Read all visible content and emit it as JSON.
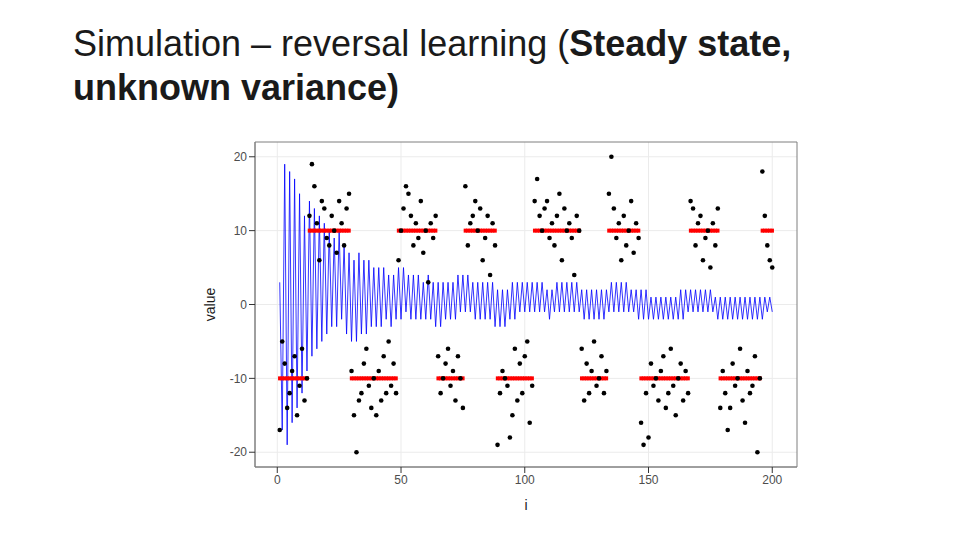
{
  "chart_data": {
    "type": "scatter",
    "title": "Simulation – reversal learning (Steady state, unknown variance)",
    "x_label": "i",
    "y_label": "value",
    "xlim": [
      -9,
      210
    ],
    "ylim": [
      -22,
      22
    ],
    "xticks": [
      0,
      50,
      100,
      150,
      200
    ],
    "yticks": [
      -20,
      -10,
      0,
      10,
      20
    ],
    "grid": true,
    "x": [
      1,
      2,
      3,
      4,
      5,
      6,
      7,
      8,
      9,
      10,
      11,
      12,
      13,
      14,
      15,
      16,
      17,
      18,
      19,
      20,
      21,
      22,
      23,
      24,
      25,
      26,
      27,
      28,
      29,
      30,
      31,
      32,
      33,
      34,
      35,
      36,
      37,
      38,
      39,
      40,
      41,
      42,
      43,
      44,
      45,
      46,
      47,
      48,
      49,
      50,
      51,
      52,
      53,
      54,
      55,
      56,
      57,
      58,
      59,
      60,
      61,
      62,
      63,
      64,
      65,
      66,
      67,
      68,
      69,
      70,
      71,
      72,
      73,
      74,
      75,
      76,
      77,
      78,
      79,
      80,
      81,
      82,
      83,
      84,
      85,
      86,
      87,
      88,
      89,
      90,
      91,
      92,
      93,
      94,
      95,
      96,
      97,
      98,
      99,
      100,
      101,
      102,
      103,
      104,
      105,
      106,
      107,
      108,
      109,
      110,
      111,
      112,
      113,
      114,
      115,
      116,
      117,
      118,
      119,
      120,
      121,
      122,
      123,
      124,
      125,
      126,
      127,
      128,
      129,
      130,
      131,
      132,
      133,
      134,
      135,
      136,
      137,
      138,
      139,
      140,
      141,
      142,
      143,
      144,
      145,
      146,
      147,
      148,
      149,
      150,
      151,
      152,
      153,
      154,
      155,
      156,
      157,
      158,
      159,
      160,
      161,
      162,
      163,
      164,
      165,
      166,
      167,
      168,
      169,
      170,
      171,
      172,
      173,
      174,
      175,
      176,
      177,
      178,
      179,
      180,
      181,
      182,
      183,
      184,
      185,
      186,
      187,
      188,
      189,
      190,
      191,
      192,
      193,
      194,
      195,
      196,
      197,
      198,
      199,
      200
    ],
    "series": [
      {
        "type": "scatter",
        "marker": "dash",
        "color": "#ff0000",
        "values": [
          -10,
          -10,
          -10,
          -10,
          -10,
          -10,
          -10,
          -10,
          -10,
          -10,
          -10,
          -10,
          10,
          10,
          10,
          10,
          10,
          10,
          10,
          10,
          10,
          10,
          10,
          10,
          10,
          10,
          10,
          10,
          10,
          -10,
          -10,
          -10,
          -10,
          -10,
          -10,
          -10,
          -10,
          -10,
          -10,
          -10,
          -10,
          -10,
          -10,
          -10,
          -10,
          -10,
          -10,
          -10,
          10,
          10,
          10,
          10,
          10,
          10,
          10,
          10,
          10,
          10,
          10,
          10,
          10,
          10,
          10,
          10,
          -10,
          -10,
          -10,
          -10,
          -10,
          -10,
          -10,
          -10,
          -10,
          -10,
          -10,
          10,
          10,
          10,
          10,
          10,
          10,
          10,
          10,
          10,
          10,
          10,
          10,
          10,
          -10,
          -10,
          -10,
          -10,
          -10,
          -10,
          -10,
          -10,
          -10,
          -10,
          -10,
          -10,
          -10,
          -10,
          -10,
          10,
          10,
          10,
          10,
          10,
          10,
          10,
          10,
          10,
          10,
          10,
          10,
          10,
          10,
          10,
          10,
          10,
          10,
          10,
          -10,
          -10,
          -10,
          -10,
          -10,
          -10,
          -10,
          -10,
          -10,
          -10,
          -10,
          10,
          10,
          10,
          10,
          10,
          10,
          10,
          10,
          10,
          10,
          10,
          10,
          10,
          -10,
          -10,
          -10,
          -10,
          -10,
          -10,
          -10,
          -10,
          -10,
          -10,
          -10,
          -10,
          -10,
          -10,
          -10,
          -10,
          -10,
          -10,
          -10,
          -10,
          10,
          10,
          10,
          10,
          10,
          10,
          10,
          10,
          10,
          10,
          10,
          10,
          -10,
          -10,
          -10,
          -10,
          -10,
          -10,
          -10,
          -10,
          -10,
          -10,
          -10,
          -10,
          -10,
          -10,
          -10,
          -10,
          -10,
          10,
          10,
          10,
          10,
          10
        ]
      },
      {
        "type": "line",
        "line_style": "solid",
        "color": "#0000ff",
        "values": [
          3,
          -17,
          19,
          -19,
          18,
          -16,
          17,
          -14,
          15,
          -12,
          12,
          -9,
          14,
          -7,
          13,
          -6,
          12,
          -5,
          11,
          -4,
          10,
          -3,
          9,
          -3,
          10,
          -2,
          8,
          -4,
          7,
          -5,
          6,
          -5,
          7,
          -4,
          6,
          -4,
          6,
          -3,
          5,
          -3,
          5,
          -3,
          5,
          -2,
          4,
          -3,
          4,
          -2,
          5,
          -2,
          5,
          -1,
          4,
          -2,
          4,
          -2,
          4,
          -2,
          3,
          -2,
          4,
          -2,
          3,
          -3,
          3,
          -3,
          3,
          -2,
          3,
          -2,
          3,
          -2,
          4,
          -1,
          4,
          -1,
          4,
          -1,
          3,
          -2,
          3,
          -2,
          3,
          -2,
          3,
          -2,
          3,
          -3,
          2,
          -3,
          2,
          -3,
          2,
          -2,
          3,
          -2,
          3,
          -1,
          3,
          -1,
          3,
          -1,
          3,
          -1,
          3,
          -1,
          3,
          -1,
          2,
          -2,
          2,
          -1,
          3,
          -1,
          3,
          -1,
          3,
          -1,
          3,
          -1,
          3,
          -1,
          2,
          -2,
          2,
          -2,
          2,
          -2,
          2,
          -2,
          2,
          -2,
          2,
          -1,
          3,
          -1,
          3,
          -1,
          3,
          -1,
          3,
          -1,
          2,
          -1,
          2,
          -2,
          2,
          -2,
          2,
          -2,
          1,
          -2,
          1,
          -2,
          1,
          -2,
          1,
          -2,
          1,
          -2,
          1,
          -2,
          2,
          -2,
          2,
          -1,
          2,
          -1,
          2,
          -1,
          2,
          -1,
          2,
          -1,
          2,
          -1,
          1,
          -2,
          1,
          -2,
          1,
          -2,
          1,
          -2,
          1,
          -2,
          1,
          -2,
          1,
          -2,
          1,
          -2,
          1,
          -2,
          1,
          -2,
          1,
          -1,
          1,
          -1
        ]
      },
      {
        "type": "scatter",
        "marker": "circle",
        "color": "#000000",
        "values": [
          -17,
          -5,
          -8,
          -14,
          -12,
          -9,
          -7,
          -15,
          -11,
          -6,
          -13,
          -10,
          12,
          19,
          16,
          11,
          6,
          14,
          13,
          9,
          8,
          12,
          10,
          7,
          14,
          11,
          8,
          13,
          15,
          -9,
          -15,
          -20,
          -13,
          -12,
          -8,
          -6,
          -11,
          -14,
          -10,
          -15,
          -9,
          -13,
          -7,
          -12,
          -5,
          -11,
          -8,
          -12,
          6,
          10,
          13,
          16,
          15,
          12,
          8,
          11,
          9,
          14,
          7,
          10,
          3,
          11,
          9,
          12,
          -7,
          -12,
          -10,
          -8,
          -6,
          -11,
          -9,
          -13,
          -7,
          -10,
          -14,
          16,
          8,
          11,
          12,
          14,
          10,
          13,
          6,
          9,
          12,
          4,
          11,
          8,
          -19,
          -12,
          -9,
          -10,
          -11,
          -18,
          -15,
          -6,
          -13,
          -8,
          -12,
          -7,
          -5,
          -16,
          -11,
          14,
          17,
          12,
          10,
          13,
          14,
          9,
          11,
          8,
          12,
          15,
          6,
          13,
          10,
          11,
          9,
          4,
          12,
          10,
          -6,
          -13,
          -8,
          -12,
          -9,
          -5,
          -11,
          -10,
          -7,
          -12,
          -9,
          15,
          20,
          13,
          9,
          11,
          6,
          12,
          8,
          10,
          14,
          7,
          11,
          9,
          -16,
          -19,
          -12,
          -18,
          -8,
          -11,
          -10,
          -13,
          -9,
          -7,
          -14,
          -12,
          -6,
          -11,
          -15,
          -10,
          -8,
          -13,
          -9,
          -12,
          14,
          13,
          8,
          11,
          12,
          6,
          9,
          10,
          5,
          11,
          8,
          13,
          -14,
          -9,
          -12,
          -17,
          -14,
          -8,
          -11,
          -10,
          -6,
          -13,
          -16,
          -9,
          -12,
          -11,
          -7,
          -20,
          -10,
          18,
          12,
          8,
          6,
          5
        ]
      }
    ]
  }
}
